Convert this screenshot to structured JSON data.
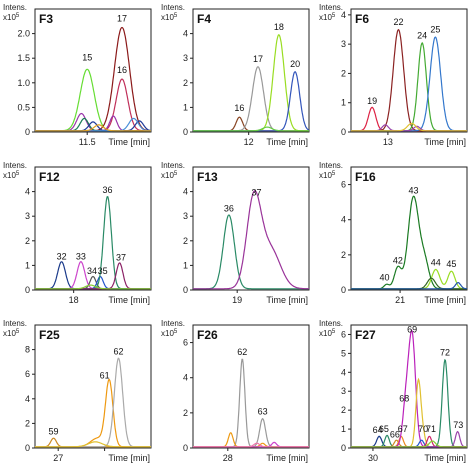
{
  "chart_data": [
    {
      "type": "line",
      "label": "F3",
      "header": {
        "intens": "Intens.",
        "unit": "x10",
        "unit_exp": "5"
      },
      "xlabel": "Time [min]",
      "xlim": [
        10.6,
        12.6
      ],
      "ylim": [
        0,
        2.5
      ],
      "yticks": [
        0,
        0.5,
        1.0,
        1.5,
        2.0
      ],
      "yticklabels": [
        "0",
        "0.5",
        "1.0",
        "1.5",
        "2.0"
      ],
      "xticks": [
        11.5
      ],
      "xticklabels": [
        "11.5"
      ],
      "series": [
        {
          "color": "#66dd33",
          "peaks": [
            [
              11.5,
              1.25,
              0.12
            ]
          ]
        },
        {
          "color": "#8b1a1a",
          "peaks": [
            [
              12.1,
              2.1,
              0.13
            ]
          ]
        },
        {
          "color": "#c0305a",
          "peaks": [
            [
              12.1,
              1.05,
              0.1
            ]
          ]
        },
        {
          "color": "#9933aa",
          "peaks": [
            [
              11.4,
              0.35,
              0.08
            ],
            [
              11.95,
              0.3,
              0.06
            ]
          ]
        },
        {
          "color": "#1a7a55",
          "peaks": [
            [
              11.45,
              0.25,
              0.07
            ]
          ]
        },
        {
          "color": "#1f3a9a",
          "peaks": [
            [
              11.6,
              0.18,
              0.07
            ],
            [
              12.4,
              0.2,
              0.07
            ]
          ]
        },
        {
          "color": "#4a90d9",
          "peaks": [
            [
              12.3,
              0.25,
              0.08
            ]
          ]
        },
        {
          "color": "#e0a020",
          "peaks": [
            [
              11.7,
              0.12,
              0.08
            ]
          ]
        }
      ],
      "annotations": [
        {
          "text": "15",
          "x": 11.5,
          "y": 1.45
        },
        {
          "text": "17",
          "x": 12.1,
          "y": 2.25
        },
        {
          "text": "16",
          "x": 12.1,
          "y": 1.2
        }
      ]
    },
    {
      "type": "line",
      "label": "F4",
      "header": {
        "intens": "Intens.",
        "unit": "x10",
        "unit_exp": "5"
      },
      "xlabel": "Time [min]",
      "xlim": [
        10.8,
        13.3
      ],
      "ylim": [
        0,
        5
      ],
      "yticks": [
        0,
        1,
        2,
        3,
        4
      ],
      "yticklabels": [
        "0",
        "1",
        "2",
        "3",
        "4"
      ],
      "xticks": [
        12
      ],
      "xticklabels": [
        "12"
      ],
      "series": [
        {
          "color": "#884422",
          "peaks": [
            [
              11.8,
              0.55,
              0.07
            ]
          ]
        },
        {
          "color": "#999999",
          "peaks": [
            [
              12.2,
              2.6,
              0.12
            ]
          ]
        },
        {
          "color": "#99dd22",
          "peaks": [
            [
              12.65,
              3.9,
              0.12
            ]
          ]
        },
        {
          "color": "#3355bb",
          "peaks": [
            [
              13.0,
              2.4,
              0.1
            ]
          ]
        },
        {
          "color": "#66cc44",
          "peaks": [
            [
              12.4,
              0.15,
              0.1
            ]
          ]
        }
      ],
      "annotations": [
        {
          "text": "16",
          "x": 11.8,
          "y": 0.85
        },
        {
          "text": "17",
          "x": 12.2,
          "y": 2.85
        },
        {
          "text": "18",
          "x": 12.65,
          "y": 4.15
        },
        {
          "text": "20",
          "x": 13.0,
          "y": 2.65
        }
      ]
    },
    {
      "type": "line",
      "label": "F6",
      "header": {
        "intens": "Intens.",
        "unit": "x10",
        "unit_exp": "5"
      },
      "xlabel": "Time [min]",
      "xlim": [
        12.3,
        14.5
      ],
      "ylim": [
        0,
        4.2
      ],
      "yticks": [
        0,
        1,
        2,
        3,
        4
      ],
      "yticklabels": [
        "0",
        "1",
        "2",
        "3",
        "4"
      ],
      "xticks": [
        13
      ],
      "xticklabels": [
        "13"
      ],
      "series": [
        {
          "color": "#dd2244",
          "peaks": [
            [
              12.7,
              0.8,
              0.07
            ]
          ]
        },
        {
          "color": "#8b2222",
          "peaks": [
            [
              13.2,
              3.45,
              0.1
            ]
          ]
        },
        {
          "color": "#44aa33",
          "peaks": [
            [
              13.65,
              3.0,
              0.08
            ]
          ]
        },
        {
          "color": "#3377cc",
          "peaks": [
            [
              13.9,
              3.2,
              0.1
            ]
          ]
        },
        {
          "color": "#9944aa",
          "peaks": [
            [
              12.95,
              0.2,
              0.06
            ],
            [
              13.55,
              0.15,
              0.06
            ]
          ]
        },
        {
          "color": "#e0c030",
          "peaks": [
            [
              13.45,
              0.25,
              0.08
            ]
          ]
        }
      ],
      "annotations": [
        {
          "text": "19",
          "x": 12.7,
          "y": 0.95
        },
        {
          "text": "22",
          "x": 13.2,
          "y": 3.65
        },
        {
          "text": "24",
          "x": 13.65,
          "y": 3.2
        },
        {
          "text": "25",
          "x": 13.9,
          "y": 3.4
        }
      ]
    },
    {
      "type": "line",
      "label": "F12",
      "header": {
        "intens": "Intens.",
        "unit": "x10",
        "unit_exp": "5"
      },
      "xlabel": "Time [min]",
      "xlim": [
        17.2,
        19.6
      ],
      "ylim": [
        0,
        5
      ],
      "yticks": [
        0,
        1,
        2,
        3,
        4
      ],
      "yticklabels": [
        "0",
        "1",
        "2",
        "3",
        "4"
      ],
      "xticks": [
        18
      ],
      "xticklabels": [
        "18"
      ],
      "series": [
        {
          "color": "#1a3a8a",
          "peaks": [
            [
              17.75,
              1.1,
              0.08
            ]
          ]
        },
        {
          "color": "#cc44cc",
          "peaks": [
            [
              18.15,
              1.1,
              0.08
            ]
          ]
        },
        {
          "color": "#555555",
          "peaks": [
            [
              18.4,
              0.5,
              0.06
            ]
          ]
        },
        {
          "color": "#2255cc",
          "peaks": [
            [
              18.55,
              0.5,
              0.06
            ]
          ]
        },
        {
          "color": "#2a8a66",
          "peaks": [
            [
              18.7,
              3.75,
              0.08
            ]
          ]
        },
        {
          "color": "#8b2266",
          "peaks": [
            [
              18.95,
              1.05,
              0.07
            ]
          ]
        },
        {
          "color": "#88cc33",
          "peaks": [
            [
              18.35,
              0.15,
              0.1
            ]
          ]
        }
      ],
      "annotations": [
        {
          "text": "32",
          "x": 17.75,
          "y": 1.25
        },
        {
          "text": "33",
          "x": 18.15,
          "y": 1.25
        },
        {
          "text": "34",
          "x": 18.38,
          "y": 0.65
        },
        {
          "text": "35",
          "x": 18.6,
          "y": 0.65
        },
        {
          "text": "36",
          "x": 18.7,
          "y": 3.95
        },
        {
          "text": "37",
          "x": 18.98,
          "y": 1.2
        }
      ]
    },
    {
      "type": "line",
      "label": "F13",
      "header": {
        "intens": "Intens.",
        "unit": "x10",
        "unit_exp": "5"
      },
      "xlabel": "Time [min]",
      "xlim": [
        18.2,
        20.3
      ],
      "ylim": [
        0,
        5
      ],
      "yticks": [
        0,
        1,
        2,
        3,
        4
      ],
      "yticklabels": [
        "0",
        "1",
        "2",
        "3",
        "4"
      ],
      "xticks": [
        19
      ],
      "xticklabels": [
        "19"
      ],
      "series": [
        {
          "color": "#2a8a66",
          "peaks": [
            [
              18.85,
              3.0,
              0.1
            ]
          ]
        },
        {
          "color": "#993399",
          "peaks": [
            [
              19.3,
              3.55,
              0.13
            ],
            [
              19.6,
              1.6,
              0.18
            ]
          ]
        }
      ],
      "annotations": [
        {
          "text": "36",
          "x": 18.85,
          "y": 3.2
        },
        {
          "text": "37",
          "x": 19.35,
          "y": 3.85
        }
      ]
    },
    {
      "type": "line",
      "label": "F16",
      "header": {
        "intens": "Intens.",
        "unit": "x10",
        "unit_exp": "5"
      },
      "xlabel": "Time [min]",
      "xlim": [
        19.9,
        22.5
      ],
      "ylim": [
        0,
        7
      ],
      "yticks": [
        0,
        2,
        4,
        6
      ],
      "yticklabels": [
        "0",
        "2",
        "4",
        "6"
      ],
      "xticks": [
        21
      ],
      "xticklabels": [
        "21"
      ],
      "series": [
        {
          "color": "#1a7a22",
          "peaks": [
            [
              20.95,
              1.2,
              0.08
            ],
            [
              21.3,
              5.2,
              0.12
            ],
            [
              21.55,
              1.5,
              0.1
            ],
            [
              20.7,
              0.25,
              0.06
            ]
          ]
        },
        {
          "color": "#99dd22",
          "peaks": [
            [
              21.8,
              1.1,
              0.09
            ],
            [
              22.15,
              1.0,
              0.08
            ]
          ]
        },
        {
          "color": "#336622",
          "peaks": [
            [
              21.7,
              0.6,
              0.09
            ]
          ]
        },
        {
          "color": "#2255aa",
          "peaks": [
            [
              22.3,
              0.35,
              0.06
            ]
          ]
        }
      ],
      "annotations": [
        {
          "text": "40",
          "x": 20.65,
          "y": 0.55
        },
        {
          "text": "42",
          "x": 20.95,
          "y": 1.5
        },
        {
          "text": "43",
          "x": 21.3,
          "y": 5.5
        },
        {
          "text": "44",
          "x": 21.8,
          "y": 1.4
        },
        {
          "text": "45",
          "x": 22.15,
          "y": 1.3
        }
      ]
    },
    {
      "type": "line",
      "label": "F25",
      "header": {
        "intens": "Intens.",
        "unit": "x10",
        "unit_exp": "5"
      },
      "xlabel": "Time [min]",
      "xlim": [
        26.5,
        29.0
      ],
      "ylim": [
        0,
        10
      ],
      "yticks": [
        0,
        2,
        4,
        6,
        8
      ],
      "yticklabels": [
        "0",
        "2",
        "4",
        "6",
        "8"
      ],
      "xticks": [
        27,
        28
      ],
      "xticklabels": [
        "27",
        ""
      ],
      "series": [
        {
          "color": "#cc8822",
          "peaks": [
            [
              26.9,
              0.7,
              0.06
            ]
          ]
        },
        {
          "color": "#ee9911",
          "peaks": [
            [
              28.1,
              5.3,
              0.08
            ],
            [
              27.85,
              0.7,
              0.15
            ]
          ]
        },
        {
          "color": "#aaaaaa",
          "peaks": [
            [
              28.3,
              7.2,
              0.09
            ]
          ]
        },
        {
          "color": "#e0c030",
          "peaks": [
            [
              27.8,
              0.4,
              0.15
            ]
          ]
        }
      ],
      "annotations": [
        {
          "text": "59",
          "x": 26.9,
          "y": 1.1
        },
        {
          "text": "61",
          "x": 28.0,
          "y": 5.65
        },
        {
          "text": "62",
          "x": 28.3,
          "y": 7.6
        }
      ]
    },
    {
      "type": "line",
      "label": "F26",
      "header": {
        "intens": "Intens.",
        "unit": "x10",
        "unit_exp": "5"
      },
      "xlabel": "Time [min]",
      "xlim": [
        26.8,
        30.8
      ],
      "ylim": [
        0,
        7
      ],
      "yticks": [
        0,
        2,
        4,
        6
      ],
      "yticklabels": [
        "0",
        "2",
        "4",
        "6"
      ],
      "xticks": [
        28
      ],
      "xticklabels": [
        "28"
      ],
      "series": [
        {
          "color": "#999999",
          "peaks": [
            [
              28.5,
              5.0,
              0.09
            ],
            [
              29.2,
              1.6,
              0.1
            ]
          ]
        },
        {
          "color": "#ee9911",
          "peaks": [
            [
              28.1,
              0.8,
              0.08
            ],
            [
              29.2,
              0.2,
              0.08
            ]
          ]
        },
        {
          "color": "#cc44cc",
          "peaks": [
            [
              29.6,
              0.25,
              0.08
            ]
          ]
        },
        {
          "color": "#ee77aa",
          "peaks": [
            [
              29.0,
              0.2,
              0.1
            ]
          ]
        }
      ],
      "annotations": [
        {
          "text": "62",
          "x": 28.5,
          "y": 5.3
        },
        {
          "text": "63",
          "x": 29.2,
          "y": 1.9
        }
      ]
    },
    {
      "type": "line",
      "label": "F27",
      "header": {
        "intens": "Intens.",
        "unit": "x10",
        "unit_exp": "5"
      },
      "xlabel": "Time [min]",
      "xlim": [
        29.3,
        33.0
      ],
      "ylim": [
        0,
        6.5
      ],
      "yticks": [
        0,
        1,
        2,
        3,
        4,
        5,
        6
      ],
      "yticklabels": [
        "0",
        "1",
        "2",
        "3",
        "4",
        "5",
        "6"
      ],
      "xticks": [
        30
      ],
      "xticklabels": [
        "30"
      ],
      "series": [
        {
          "color": "#1a3a8a",
          "peaks": [
            [
              30.2,
              0.55,
              0.08
            ]
          ]
        },
        {
          "color": "#2a8a66",
          "peaks": [
            [
              30.45,
              0.6,
              0.07
            ],
            [
              32.3,
              4.6,
              0.09
            ]
          ]
        },
        {
          "color": "#cc8822",
          "peaks": [
            [
              30.75,
              0.35,
              0.07
            ]
          ]
        },
        {
          "color": "#ee8822",
          "peaks": [
            [
              30.9,
              0.55,
              0.07
            ]
          ]
        },
        {
          "color": "#bb22bb",
          "peaks": [
            [
              31.25,
              5.8,
              0.11
            ],
            [
              31.05,
              2.2,
              0.1
            ]
          ]
        },
        {
          "color": "#e0c030",
          "peaks": [
            [
              31.45,
              3.5,
              0.08
            ],
            [
              31.6,
              0.6,
              0.07
            ]
          ]
        },
        {
          "color": "#2255cc",
          "peaks": [
            [
              31.55,
              0.35,
              0.07
            ]
          ]
        },
        {
          "color": "#cc2266",
          "peaks": [
            [
              31.8,
              0.55,
              0.07
            ]
          ]
        },
        {
          "color": "#9944aa",
          "peaks": [
            [
              32.7,
              0.8,
              0.07
            ]
          ]
        },
        {
          "color": "#88cc33",
          "peaks": [
            [
              31.9,
              0.3,
              0.1
            ]
          ]
        }
      ],
      "annotations": [
        {
          "text": "64",
          "x": 30.15,
          "y": 0.8
        },
        {
          "text": "65",
          "x": 30.35,
          "y": 0.85
        },
        {
          "text": "66",
          "x": 30.7,
          "y": 0.55
        },
        {
          "text": "67",
          "x": 30.95,
          "y": 0.85
        },
        {
          "text": "68",
          "x": 31.0,
          "y": 2.45
        },
        {
          "text": "69",
          "x": 31.25,
          "y": 6.1
        },
        {
          "text": "70",
          "x": 31.6,
          "y": 0.85
        },
        {
          "text": "71",
          "x": 31.85,
          "y": 0.85
        },
        {
          "text": "72",
          "x": 32.3,
          "y": 4.9
        },
        {
          "text": "73",
          "x": 32.72,
          "y": 1.05
        }
      ]
    }
  ]
}
